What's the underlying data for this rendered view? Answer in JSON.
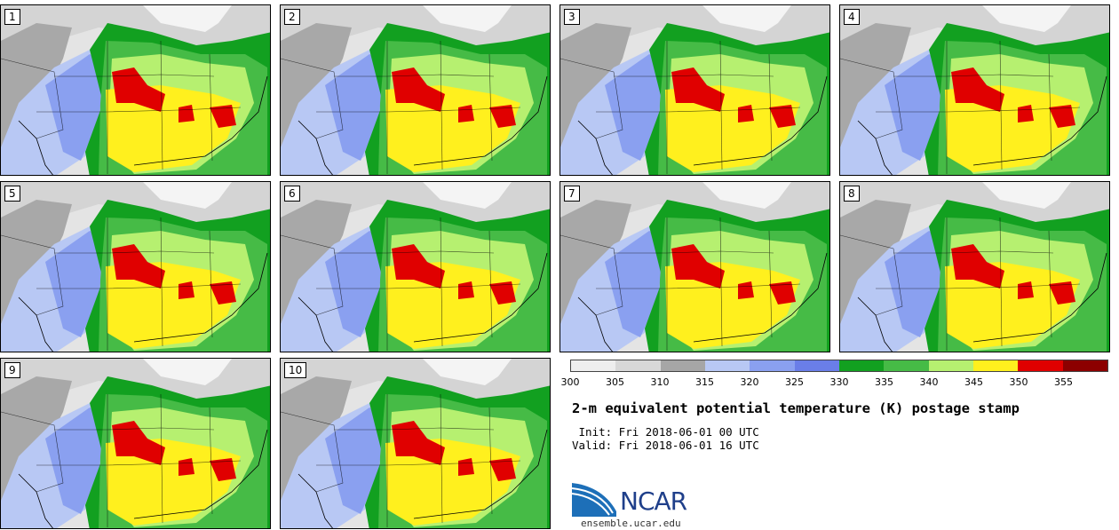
{
  "panels": [
    {
      "label": "1"
    },
    {
      "label": "2"
    },
    {
      "label": "3"
    },
    {
      "label": "4"
    },
    {
      "label": "5"
    },
    {
      "label": "6"
    },
    {
      "label": "7"
    },
    {
      "label": "8"
    },
    {
      "label": "9"
    },
    {
      "label": "10"
    }
  ],
  "colorbar": {
    "colors": [
      "#eeeeee",
      "#d8d8d8",
      "#a6a6a6",
      "#b8c8f4",
      "#8aa0f0",
      "#6a7ee8",
      "#12a020",
      "#46bb46",
      "#b6f070",
      "#fff01e",
      "#e00000",
      "#8c0000"
    ],
    "ticks": [
      "300",
      "305",
      "310",
      "315",
      "320",
      "325",
      "330",
      "335",
      "340",
      "345",
      "350",
      "355"
    ]
  },
  "title": "2-m equivalent potential temperature (K) postage stamp",
  "init_line": " Init: Fri 2018-06-01 00 UTC",
  "valid_line": "Valid: Fri 2018-06-01 16 UTC",
  "logo": {
    "text": "NCAR",
    "colors": {
      "blue": "#1f3f8a",
      "light": "#2b7fc8"
    }
  },
  "site": "ensemble.ucar.edu"
}
